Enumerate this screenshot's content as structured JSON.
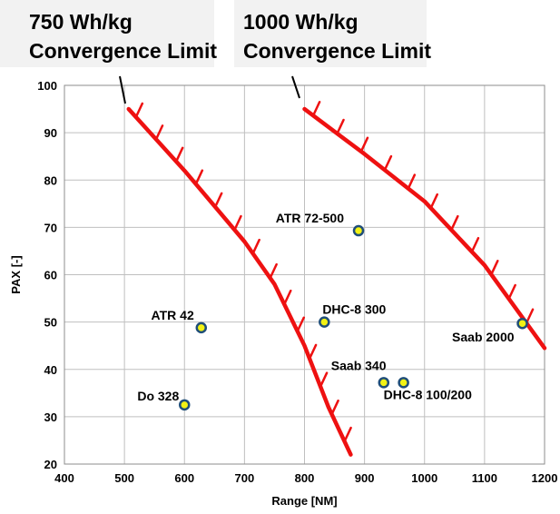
{
  "chart_data": {
    "type": "scatter",
    "xlabel": "Range [NM]",
    "ylabel": "PAX [-]",
    "xlim": [
      400,
      1200
    ],
    "ylim": [
      20,
      100
    ],
    "x_ticks": [
      "400",
      "500",
      "600",
      "700",
      "800",
      "900",
      "1000",
      "1100",
      "1200"
    ],
    "y_ticks": [
      "20",
      "30",
      "40",
      "50",
      "60",
      "70",
      "80",
      "90",
      "100"
    ],
    "grid": true,
    "points": [
      {
        "label": "ATR 72-500",
        "x": 890,
        "y": 69.3
      },
      {
        "label": "DHC-8 300",
        "x": 833,
        "y": 50
      },
      {
        "label": "ATR 42",
        "x": 628,
        "y": 48.8
      },
      {
        "label": "Saab 2000",
        "x": 1163,
        "y": 49.7
      },
      {
        "label": "Saab 340",
        "x": 932,
        "y": 37.2
      },
      {
        "label": "DHC-8 100/200",
        "x": 965,
        "y": 37.2
      },
      {
        "label": "Do 328",
        "x": 600,
        "y": 32.5
      }
    ],
    "limit_lines": [
      {
        "name": "750 Wh/kg Convergence Limit",
        "points": [
          [
            507,
            95
          ],
          [
            600,
            82
          ],
          [
            700,
            67
          ],
          [
            750,
            58
          ],
          [
            800,
            45
          ],
          [
            840,
            32
          ],
          [
            877,
            22
          ]
        ]
      },
      {
        "name": "1000 Wh/kg Convergence Limit",
        "points": [
          [
            800,
            95
          ],
          [
            900,
            85.5
          ],
          [
            1000,
            75.5
          ],
          [
            1100,
            62
          ],
          [
            1200,
            44.5
          ]
        ]
      }
    ],
    "colors": {
      "limit_line": "#ee1111",
      "point_fill": "#f2f214",
      "point_stroke": "#1f4e79",
      "grid": "#bfbfbf",
      "callout_bg": "#f2f2f2"
    }
  },
  "callouts": [
    {
      "line1": "750 Wh/kg",
      "line2": "Convergence Limit"
    },
    {
      "line1": "1000 Wh/kg",
      "line2": "Convergence Limit"
    }
  ]
}
